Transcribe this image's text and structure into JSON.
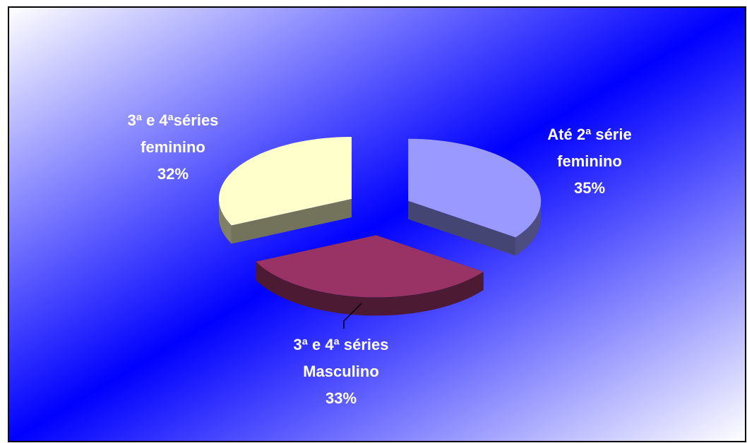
{
  "chart_data": {
    "type": "pie3d",
    "categories": [
      "Até 2ª série feminino",
      "3ª e 4ª séries Masculino",
      "3ª e 4ªséries feminino"
    ],
    "values": [
      35,
      33,
      32
    ],
    "value_labels": [
      "35%",
      "33%",
      "32%"
    ],
    "colors": [
      "#9999ff",
      "#993366",
      "#ffffcc"
    ]
  }
}
